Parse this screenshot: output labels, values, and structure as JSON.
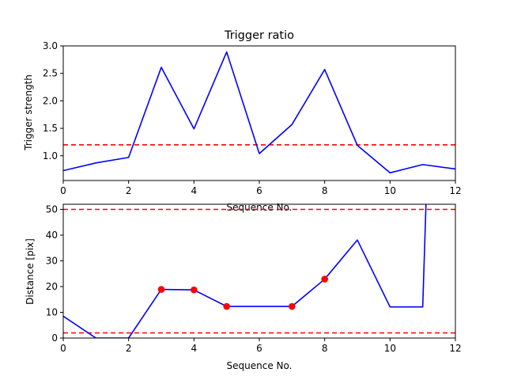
{
  "chart_data": [
    {
      "type": "line",
      "title": "Trigger ratio",
      "xlabel": "Sequence No.",
      "ylabel": "Trigger strength",
      "xlim": [
        0,
        12
      ],
      "ylim": [
        0.55,
        3.0
      ],
      "xticks": [
        "0",
        "2",
        "4",
        "6",
        "8",
        "10",
        "12"
      ],
      "yticks": [
        "1.0",
        "1.5",
        "2.0",
        "2.5",
        "3.0"
      ],
      "series": [
        {
          "color": "#0000ff",
          "x": [
            0,
            1,
            2,
            3,
            4,
            5,
            6,
            7,
            8,
            9,
            10,
            11,
            12
          ],
          "y": [
            0.73,
            0.87,
            0.97,
            2.61,
            1.49,
            2.89,
            1.04,
            1.57,
            2.57,
            1.19,
            0.69,
            0.84,
            0.76
          ]
        }
      ],
      "threshold": {
        "y": 1.2,
        "color": "#ff0000",
        "style": "dashed"
      },
      "grid": false
    },
    {
      "type": "line",
      "xlabel": "Sequence No.",
      "ylabel": "Distance [pix]",
      "xlim": [
        0,
        12
      ],
      "ylim": [
        0,
        52
      ],
      "xticks": [
        "0",
        "2",
        "4",
        "6",
        "8",
        "10",
        "12"
      ],
      "yticks": [
        "0",
        "10",
        "20",
        "30",
        "40",
        "50"
      ],
      "series": [
        {
          "color": "#0000ff",
          "x": [
            0,
            1,
            2,
            3,
            4,
            5,
            6,
            7,
            8,
            9,
            10,
            11,
            11.1
          ],
          "y": [
            8.5,
            0,
            0,
            18.9,
            18.7,
            12.3,
            12.3,
            12.3,
            22.9,
            38.1,
            12.1,
            12.1,
            52
          ]
        }
      ],
      "markers": {
        "color": "#ff0000",
        "x": [
          3,
          4,
          5,
          7,
          8
        ],
        "y": [
          18.9,
          18.7,
          12.3,
          12.3,
          22.9
        ]
      },
      "thresholds": [
        {
          "y": 50,
          "color": "#ff0000",
          "style": "dashed"
        },
        {
          "y": 2,
          "color": "#ff0000",
          "style": "dashed"
        }
      ],
      "grid": false
    }
  ]
}
